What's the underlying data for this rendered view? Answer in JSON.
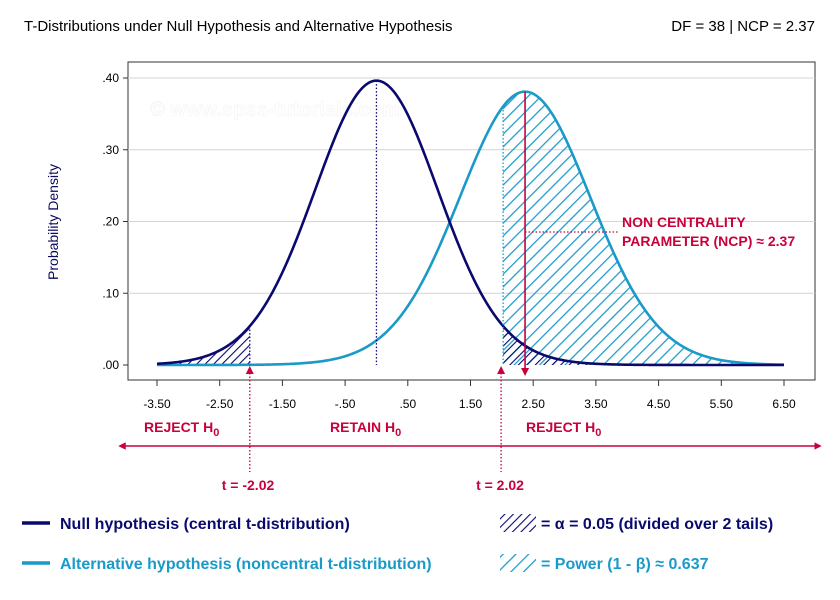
{
  "header": {
    "title": "T-Distributions under Null Hypothesis and Alternative Hypothesis",
    "info": "DF = 38 | NCP = 2.37"
  },
  "watermark": "© www.spss-tutorials.com",
  "colors": {
    "null_curve": "#0a0a6e",
    "alt_curve": "#1a9ac8",
    "accent": "#c8003c",
    "axis": "#333333",
    "grid": "#d4d4d4"
  },
  "chart_data": {
    "type": "line",
    "xlabel": "",
    "ylabel": "Probability Density",
    "xlim": [
      -3.5,
      6.5
    ],
    "ylim": [
      0,
      0.4
    ],
    "x_ticks": [
      -3.5,
      -2.5,
      -1.5,
      -0.5,
      0.5,
      1.5,
      2.5,
      3.5,
      4.5,
      5.5,
      6.5
    ],
    "x_tick_labels": [
      "-3.50",
      "-2.50",
      "-1.50",
      "-.50",
      ".50",
      "1.50",
      "2.50",
      "3.50",
      "4.50",
      "5.50",
      "6.50"
    ],
    "y_ticks": [
      0,
      0.1,
      0.2,
      0.3,
      0.4
    ],
    "y_tick_labels": [
      ".00",
      ".10",
      ".20",
      ".30",
      ".40"
    ],
    "grid": "horizontal",
    "df": 38,
    "ncp": 2.37,
    "critical_values": [
      -2.02,
      2.02
    ],
    "series": [
      {
        "name": "Null hypothesis (central t-distribution)",
        "distribution": "central t",
        "center": 0,
        "peak_density": 0.397
      },
      {
        "name": "Alternative hypothesis (noncentral t-distribution)",
        "distribution": "noncentral t",
        "center": 2.37,
        "peak_density": 0.381
      }
    ],
    "shaded_regions": [
      {
        "label": "α",
        "value": 0.05,
        "description": "divided over 2 tails",
        "ranges": [
          [
            -3.5,
            -2.02
          ],
          [
            2.02,
            6.5
          ]
        ]
      },
      {
        "label": "Power",
        "value": 0.637,
        "range": [
          2.02,
          6.5
        ]
      }
    ]
  },
  "annotations": {
    "reject_left": "REJECT H",
    "retain": "RETAIN H",
    "reject_right": "REJECT H",
    "subscript": "0",
    "t_left": "t = -2.02",
    "t_right": "t = 2.02",
    "ncp_line1": "NON CENTRALITY",
    "ncp_line2": "PARAMETER (NCP) ≈ 2.37"
  },
  "legend": {
    "null": "Null hypothesis (central t-distribution)",
    "alt": "Alternative hypothesis (noncentral t-distribution)",
    "alpha": "= α = 0.05 (divided over 2 tails)",
    "power": "= Power (1 - β) ≈ 0.637"
  }
}
